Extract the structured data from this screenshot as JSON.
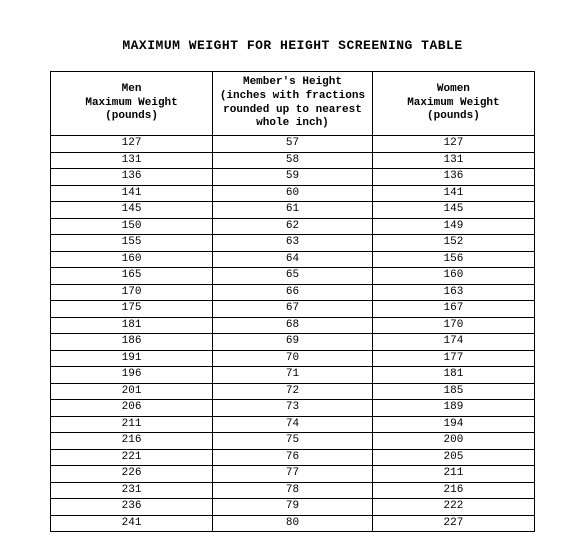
{
  "title": "MAXIMUM WEIGHT FOR HEIGHT SCREENING TABLE",
  "table": {
    "type": "table",
    "background_color": "#ffffff",
    "border_color": "#000000",
    "text_color": "#000000",
    "font_family": "Courier New",
    "title_fontsize": 13,
    "header_fontsize": 11,
    "cell_fontsize": 11,
    "columns": [
      {
        "key": "men",
        "lines": [
          "Men",
          "Maximum Weight",
          "(pounds)"
        ],
        "width_pct": 33.5,
        "align": "center"
      },
      {
        "key": "height",
        "lines": [
          "Member's Height",
          "(inches with fractions",
          "rounded up to nearest",
          "whole inch)"
        ],
        "width_pct": 33.0,
        "align": "center"
      },
      {
        "key": "women",
        "lines": [
          "Women",
          "Maximum Weight",
          "(pounds)"
        ],
        "width_pct": 33.5,
        "align": "center"
      }
    ],
    "rows": [
      [
        "127",
        "57",
        "127"
      ],
      [
        "131",
        "58",
        "131"
      ],
      [
        "136",
        "59",
        "136"
      ],
      [
        "141",
        "60",
        "141"
      ],
      [
        "145",
        "61",
        "145"
      ],
      [
        "150",
        "62",
        "149"
      ],
      [
        "155",
        "63",
        "152"
      ],
      [
        "160",
        "64",
        "156"
      ],
      [
        "165",
        "65",
        "160"
      ],
      [
        "170",
        "66",
        "163"
      ],
      [
        "175",
        "67",
        "167"
      ],
      [
        "181",
        "68",
        "170"
      ],
      [
        "186",
        "69",
        "174"
      ],
      [
        "191",
        "70",
        "177"
      ],
      [
        "196",
        "71",
        "181"
      ],
      [
        "201",
        "72",
        "185"
      ],
      [
        "206",
        "73",
        "189"
      ],
      [
        "211",
        "74",
        "194"
      ],
      [
        "216",
        "75",
        "200"
      ],
      [
        "221",
        "76",
        "205"
      ],
      [
        "226",
        "77",
        "211"
      ],
      [
        "231",
        "78",
        "216"
      ],
      [
        "236",
        "79",
        "222"
      ],
      [
        "241",
        "80",
        "227"
      ]
    ]
  }
}
